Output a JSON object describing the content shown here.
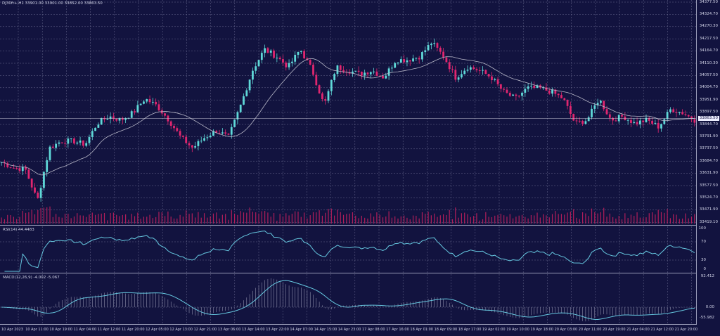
{
  "header": {
    "symbol_line": "DJ30ft+,H1  33901.00 33901.00 33852.00 33863.50"
  },
  "price_axis": {
    "labels": [
      "34377.50",
      "34324.70",
      "34270.30",
      "34217.50",
      "34164.70",
      "34110.30",
      "34057.50",
      "34004.70",
      "33951.90",
      "33897.50",
      "33844.70",
      "33791.90",
      "33737.50",
      "33684.70",
      "33631.90",
      "33577.50",
      "33524.70",
      "33471.90",
      "33419.10"
    ],
    "current_price": "33863.50"
  },
  "rsi": {
    "label": "RSI(14) 44.4483",
    "axis": [
      "100",
      "70",
      "30",
      "0"
    ]
  },
  "macd": {
    "label": "MACD(12,26,9) -4.002 -5.067",
    "axis": [
      "92.412",
      "0.00",
      "-55.982"
    ]
  },
  "time_axis": [
    "10 Apr 2023",
    "10 Apr 11:00",
    "10 Apr 19:00",
    "11 Apr 04:00",
    "11 Apr 12:00",
    "11 Apr 20:00",
    "12 Apr 05:00",
    "12 Apr 13:00",
    "12 Apr 21:00",
    "13 Apr 06:00",
    "13 Apr 14:00",
    "13 Apr 22:00",
    "14 Apr 07:00",
    "14 Apr 15:00",
    "14 Apr 23:00",
    "17 Apr 08:00",
    "17 Apr 16:00",
    "18 Apr 01:00",
    "18 Apr 09:00",
    "18 Apr 17:00",
    "19 Apr 02:00",
    "19 Apr 10:00",
    "19 Apr 18:00",
    "20 Apr 03:00",
    "20 Apr 11:00",
    "20 Apr 19:00",
    "21 Apr 04:00",
    "21 Apr 12:00",
    "21 Apr 20:00"
  ],
  "colors": {
    "background": "#12133f",
    "bull": "#5fd8d8",
    "bear": "#e0266f",
    "ma": "#b8b8c8",
    "indicator": "#66c8e0",
    "grid": "#6a6c90"
  },
  "chart_data": {
    "type": "candlestick",
    "ylim": [
      33419.1,
      34377.5
    ],
    "closes": [
      33680,
      33656,
      33649,
      33511,
      33742,
      33772,
      33772,
      33757,
      33849,
      33880,
      33864,
      33895,
      33957,
      33926,
      33864,
      33788,
      33742,
      33788,
      33818,
      33788,
      33926,
      34080,
      34172,
      34141,
      34095,
      34172,
      34080,
      33926,
      34095,
      34080,
      34064,
      34080,
      34049,
      34126,
      34126,
      34141,
      34202,
      34141,
      34049,
      34095,
      34080,
      34049,
      33987,
      33957,
      34003,
      34003,
      33987,
      33957,
      33849,
      33864,
      33957,
      33864,
      33880,
      33849,
      33864,
      33834,
      33911,
      33895,
      33864
    ]
  }
}
